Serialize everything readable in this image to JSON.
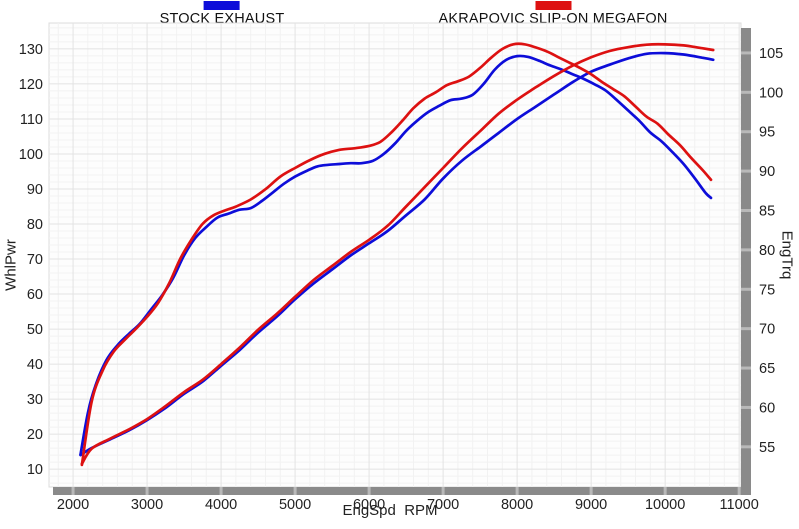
{
  "legend": [
    {
      "label": "STOCK EXHAUST",
      "color": "#0d0dd9"
    },
    {
      "label": "AKRAPOVIC SLIP-ON MEGAFON",
      "color": "#dd1111"
    }
  ],
  "chart_data": {
    "type": "line",
    "title": "",
    "grid": true,
    "legend_position": "top",
    "x_axis": {
      "label": "EngSpd  RPM",
      "min": 1675,
      "max": 11025,
      "minor_step": 200,
      "major_ticks": [
        2000,
        3000,
        4000,
        5000,
        6000,
        7000,
        8000,
        9000,
        10000,
        11000
      ]
    },
    "y_left": {
      "label": "WhlPwr",
      "min": 4.9,
      "max": 137.4,
      "minor_step": 2,
      "major_ticks": [
        10,
        20,
        30,
        40,
        50,
        60,
        70,
        80,
        90,
        100,
        110,
        120,
        130
      ]
    },
    "y_right": {
      "label": "EngTrq",
      "min": 49.9,
      "max": 108.8,
      "major_ticks": [
        55,
        60,
        65,
        70,
        75,
        80,
        85,
        90,
        95,
        100,
        105
      ]
    },
    "series": [
      {
        "name": "Stock Exhaust EngTrq",
        "color": "#0d0dd9",
        "axis": "right",
        "points": [
          [
            2100,
            54.0
          ],
          [
            2200,
            59.3
          ],
          [
            2300,
            62.7
          ],
          [
            2450,
            66.0
          ],
          [
            2600,
            67.9
          ],
          [
            2750,
            69.3
          ],
          [
            2900,
            70.6
          ],
          [
            3050,
            72.4
          ],
          [
            3200,
            74.2
          ],
          [
            3350,
            76.4
          ],
          [
            3500,
            79.3
          ],
          [
            3650,
            81.5
          ],
          [
            3800,
            82.9
          ],
          [
            3950,
            84.1
          ],
          [
            4100,
            84.6
          ],
          [
            4250,
            85.1
          ],
          [
            4400,
            85.3
          ],
          [
            4550,
            86.2
          ],
          [
            4700,
            87.3
          ],
          [
            4850,
            88.4
          ],
          [
            5000,
            89.3
          ],
          [
            5150,
            90.0
          ],
          [
            5300,
            90.6
          ],
          [
            5450,
            90.8
          ],
          [
            5600,
            90.9
          ],
          [
            5750,
            91.0
          ],
          [
            5900,
            91.0
          ],
          [
            6050,
            91.3
          ],
          [
            6200,
            92.2
          ],
          [
            6350,
            93.5
          ],
          [
            6500,
            95.1
          ],
          [
            6650,
            96.4
          ],
          [
            6800,
            97.5
          ],
          [
            6950,
            98.3
          ],
          [
            7100,
            99.0
          ],
          [
            7250,
            99.2
          ],
          [
            7400,
            99.7
          ],
          [
            7550,
            101.1
          ],
          [
            7700,
            102.9
          ],
          [
            7850,
            104.1
          ],
          [
            8000,
            104.6
          ],
          [
            8150,
            104.5
          ],
          [
            8300,
            104.0
          ],
          [
            8450,
            103.4
          ],
          [
            8600,
            102.9
          ],
          [
            8750,
            102.3
          ],
          [
            8900,
            101.7
          ],
          [
            9050,
            101.0
          ],
          [
            9200,
            100.2
          ],
          [
            9350,
            99.0
          ],
          [
            9500,
            97.7
          ],
          [
            9650,
            96.4
          ],
          [
            9800,
            94.9
          ],
          [
            9950,
            93.8
          ],
          [
            10100,
            92.4
          ],
          [
            10250,
            90.9
          ],
          [
            10400,
            89.1
          ],
          [
            10550,
            87.2
          ],
          [
            10620,
            86.6
          ]
        ]
      },
      {
        "name": "Stock Exhaust WhlPwr",
        "color": "#0d0dd9",
        "axis": "left",
        "points": [
          [
            2100,
            14
          ],
          [
            2250,
            16
          ],
          [
            2500,
            18.5
          ],
          [
            2750,
            21
          ],
          [
            3000,
            24
          ],
          [
            3250,
            27.5
          ],
          [
            3500,
            31.5
          ],
          [
            3750,
            35
          ],
          [
            4000,
            39.5
          ],
          [
            4250,
            44
          ],
          [
            4500,
            49
          ],
          [
            4750,
            53.5
          ],
          [
            5000,
            58.5
          ],
          [
            5250,
            63
          ],
          [
            5500,
            67
          ],
          [
            5750,
            71
          ],
          [
            6000,
            74.5
          ],
          [
            6250,
            78
          ],
          [
            6500,
            82.5
          ],
          [
            6750,
            87
          ],
          [
            7000,
            93
          ],
          [
            7250,
            98
          ],
          [
            7500,
            102
          ],
          [
            7750,
            106
          ],
          [
            8000,
            110
          ],
          [
            8250,
            113.5
          ],
          [
            8500,
            117
          ],
          [
            8750,
            120.5
          ],
          [
            9000,
            123.5
          ],
          [
            9250,
            125.5
          ],
          [
            9500,
            127.3
          ],
          [
            9750,
            128.6
          ],
          [
            10000,
            128.8
          ],
          [
            10250,
            128.4
          ],
          [
            10500,
            127.5
          ],
          [
            10650,
            126.9
          ]
        ]
      },
      {
        "name": "Akrapovic EngTrq",
        "color": "#dd1111",
        "axis": "right",
        "points": [
          [
            2120,
            52.7
          ],
          [
            2250,
            60.7
          ],
          [
            2400,
            64.7
          ],
          [
            2550,
            67.1
          ],
          [
            2700,
            68.6
          ],
          [
            2850,
            70.0
          ],
          [
            3000,
            71.5
          ],
          [
            3150,
            73.3
          ],
          [
            3300,
            75.8
          ],
          [
            3450,
            78.9
          ],
          [
            3600,
            81.3
          ],
          [
            3750,
            83.3
          ],
          [
            3900,
            84.4
          ],
          [
            4050,
            85.0
          ],
          [
            4200,
            85.5
          ],
          [
            4400,
            86.4
          ],
          [
            4600,
            87.7
          ],
          [
            4800,
            89.3
          ],
          [
            5000,
            90.4
          ],
          [
            5200,
            91.4
          ],
          [
            5400,
            92.2
          ],
          [
            5600,
            92.7
          ],
          [
            5800,
            92.9
          ],
          [
            6000,
            93.2
          ],
          [
            6150,
            93.7
          ],
          [
            6300,
            94.9
          ],
          [
            6450,
            96.4
          ],
          [
            6600,
            98.0
          ],
          [
            6750,
            99.2
          ],
          [
            6900,
            100.0
          ],
          [
            7050,
            100.9
          ],
          [
            7200,
            101.4
          ],
          [
            7350,
            102.0
          ],
          [
            7500,
            103.1
          ],
          [
            7650,
            104.4
          ],
          [
            7800,
            105.5
          ],
          [
            7950,
            106.1
          ],
          [
            8100,
            106.1
          ],
          [
            8250,
            105.7
          ],
          [
            8400,
            105.2
          ],
          [
            8550,
            104.5
          ],
          [
            8700,
            103.8
          ],
          [
            8850,
            103.1
          ],
          [
            9000,
            102.3
          ],
          [
            9150,
            101.3
          ],
          [
            9300,
            100.4
          ],
          [
            9450,
            99.5
          ],
          [
            9600,
            98.2
          ],
          [
            9750,
            96.9
          ],
          [
            9900,
            96.0
          ],
          [
            10050,
            94.6
          ],
          [
            10200,
            93.3
          ],
          [
            10350,
            91.7
          ],
          [
            10500,
            90.2
          ],
          [
            10620,
            88.9
          ]
        ]
      },
      {
        "name": "Akrapovic WhlPwr",
        "color": "#dd1111",
        "axis": "left",
        "points": [
          [
            2120,
            11.5
          ],
          [
            2250,
            15.8
          ],
          [
            2500,
            18.7
          ],
          [
            2750,
            21.3
          ],
          [
            3000,
            24.3
          ],
          [
            3250,
            28
          ],
          [
            3500,
            32
          ],
          [
            3750,
            35.5
          ],
          [
            4000,
            40
          ],
          [
            4250,
            44.7
          ],
          [
            4500,
            49.8
          ],
          [
            4750,
            54.3
          ],
          [
            5000,
            59.2
          ],
          [
            5250,
            64
          ],
          [
            5500,
            68
          ],
          [
            5750,
            72
          ],
          [
            6000,
            75.5
          ],
          [
            6250,
            79.5
          ],
          [
            6500,
            85
          ],
          [
            6750,
            90.5
          ],
          [
            7000,
            96
          ],
          [
            7250,
            101.5
          ],
          [
            7500,
            106.5
          ],
          [
            7750,
            111.5
          ],
          [
            8000,
            115.5
          ],
          [
            8250,
            119
          ],
          [
            8500,
            122.3
          ],
          [
            8750,
            125.2
          ],
          [
            9000,
            127.6
          ],
          [
            9250,
            129.4
          ],
          [
            9500,
            130.5
          ],
          [
            9750,
            131.2
          ],
          [
            10000,
            131.3
          ],
          [
            10250,
            131
          ],
          [
            10500,
            130.2
          ],
          [
            10650,
            129.7
          ]
        ]
      }
    ],
    "style": {
      "plot_bg": "#fdfdfd",
      "plot_border": "#dcdcdc",
      "grid_minor": "#f2f2f2",
      "grid_major": "#e3e3e3",
      "axis_bar": "#8a8a8a",
      "axis_bar_notch": "#b9b9b9",
      "line_width": 2.7
    }
  }
}
